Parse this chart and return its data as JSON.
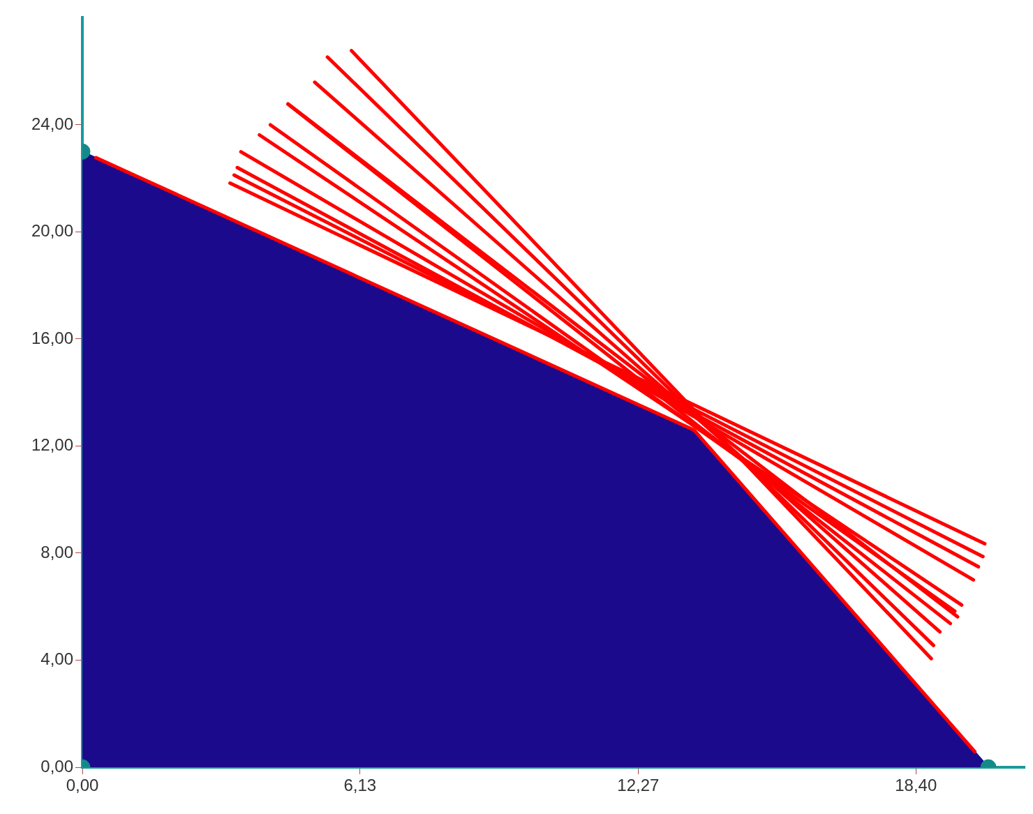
{
  "chart_data": {
    "type": "line",
    "xlim": [
      0,
      20.8
    ],
    "ylim": [
      0,
      28
    ],
    "xticks": [
      {
        "value": 0,
        "label": "0,00"
      },
      {
        "value": 6.13,
        "label": "6,13"
      },
      {
        "value": 12.27,
        "label": "12,27"
      },
      {
        "value": 18.4,
        "label": "18,40"
      }
    ],
    "yticks": [
      {
        "value": 0,
        "label": "0,00"
      },
      {
        "value": 4,
        "label": "4,00"
      },
      {
        "value": 8,
        "label": "8,00"
      },
      {
        "value": 12,
        "label": "12,00"
      },
      {
        "value": 16,
        "label": "16,00"
      },
      {
        "value": 20,
        "label": "20,00"
      },
      {
        "value": 24,
        "label": "24,00"
      }
    ],
    "grid": false,
    "legend": false,
    "marker": "none",
    "line_style": "solid",
    "series": [
      {
        "type": "area",
        "color": "#1c0a8c",
        "x": [
          0,
          0,
          13.5,
          20
        ],
        "values": [
          0,
          23,
          12.6,
          0
        ]
      },
      {
        "color": "#ff0000",
        "x": [
          0.3,
          13.5,
          19.7
        ],
        "values": [
          22.77,
          12.6,
          0.58
        ]
      },
      {
        "color": "#ff0000",
        "x": [
          5.94,
          18.74
        ],
        "values": [
          26.77,
          4.06
        ]
      },
      {
        "color": "#ff0000",
        "x": [
          5.41,
          18.79
        ],
        "values": [
          26.53,
          4.55
        ]
      },
      {
        "color": "#ff0000",
        "x": [
          5.13,
          18.93
        ],
        "values": [
          25.59,
          5.06
        ]
      },
      {
        "color": "#ff0000",
        "x": [
          4.54,
          19.16
        ],
        "values": [
          24.77,
          5.37
        ]
      },
      {
        "color": "#ff0000",
        "x": [
          4.54,
          19.32
        ],
        "values": [
          24.78,
          5.62
        ]
      },
      {
        "color": "#ff0000",
        "x": [
          4.15,
          19.26
        ],
        "values": [
          24.0,
          5.83
        ]
      },
      {
        "color": "#ff0000",
        "x": [
          3.91,
          19.41
        ],
        "values": [
          23.62,
          6.06
        ]
      },
      {
        "color": "#ff0000",
        "x": [
          3.5,
          19.67
        ],
        "values": [
          22.99,
          7.0
        ]
      },
      {
        "color": "#ff0000",
        "x": [
          3.42,
          19.78
        ],
        "values": [
          22.4,
          7.49
        ]
      },
      {
        "color": "#ff0000",
        "x": [
          3.35,
          19.88
        ],
        "values": [
          22.12,
          7.87
        ]
      },
      {
        "color": "#ff0000",
        "x": [
          3.26,
          19.92
        ],
        "values": [
          21.82,
          8.35
        ]
      },
      {
        "type": "scatter",
        "color": "#138a8a",
        "marker": "circle",
        "x": [
          0,
          0,
          20
        ],
        "values": [
          0,
          23,
          0
        ]
      }
    ]
  }
}
